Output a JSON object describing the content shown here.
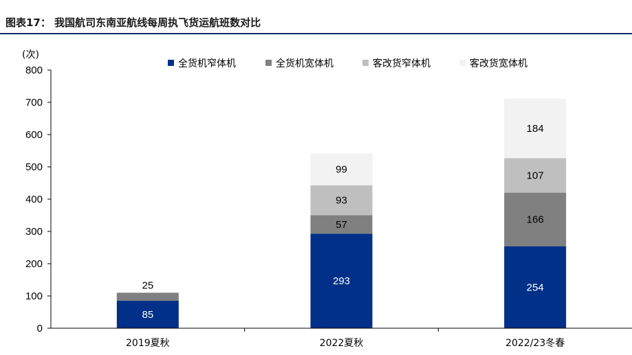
{
  "title": "图表17： 我国航司东南亚航线每周执飞货运航班数对比",
  "chart_data": {
    "type": "bar",
    "stacked": true,
    "ylabel": "(次)",
    "ylim": [
      0,
      800
    ],
    "yticks": [
      0,
      100,
      200,
      300,
      400,
      500,
      600,
      700,
      800
    ],
    "categories": [
      "2019夏秋",
      "2022夏秋",
      "2022/23冬春"
    ],
    "legend_position": "top",
    "series": [
      {
        "name": "全货机窄体机",
        "color": "#003087",
        "values": [
          85,
          293,
          254
        ],
        "labels": [
          "85",
          "293",
          "254"
        ],
        "label_color": "#ffffff"
      },
      {
        "name": "全货机宽体机",
        "color": "#808080",
        "values": [
          25,
          57,
          166
        ],
        "labels": [
          "25",
          "57",
          "166"
        ],
        "label_color": "#000000"
      },
      {
        "name": "客改货窄体机",
        "color": "#bfbfbf",
        "values": [
          0,
          93,
          107
        ],
        "labels": [
          "",
          "93",
          "107"
        ],
        "label_color": "#000000"
      },
      {
        "name": "客改货宽体机",
        "color": "#f2f2f2",
        "values": [
          0,
          99,
          184
        ],
        "labels": [
          "",
          "99",
          "184"
        ],
        "label_color": "#000000"
      }
    ]
  }
}
